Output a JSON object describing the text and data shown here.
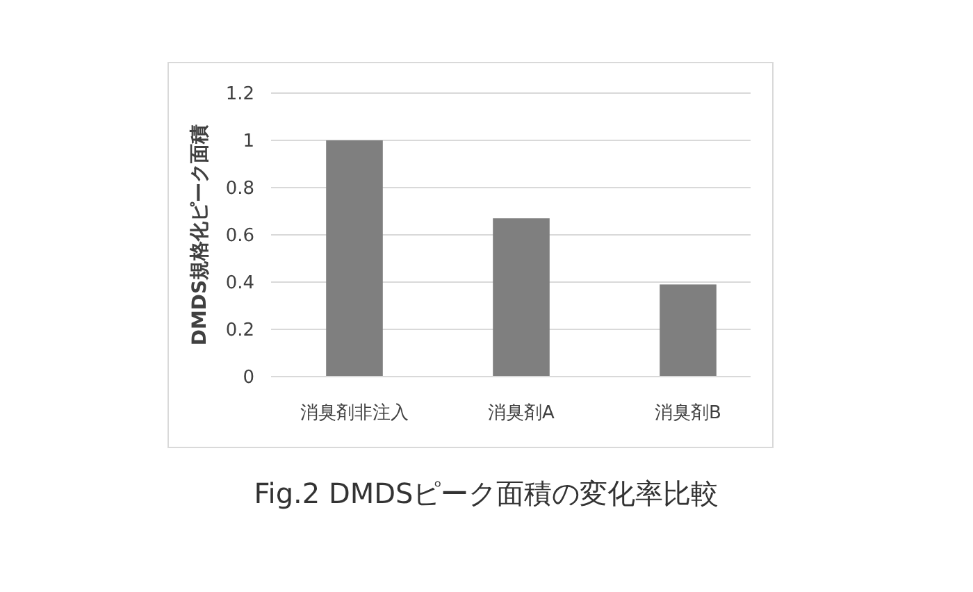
{
  "chart_data": {
    "type": "bar",
    "ylabel": "DMDS規格化ピーク面積",
    "categories": [
      "消臭剤非注入",
      "消臭剤A",
      "消臭剤B"
    ],
    "values": [
      1,
      0.67,
      0.39
    ],
    "color": "#7f7f7f",
    "ylim": [
      0,
      1.2
    ],
    "yticks": [
      0,
      0.2,
      0.4,
      0.6,
      0.8,
      1,
      1.2
    ],
    "grid": "y",
    "annotations": [
      "Fig.2 DMDSピーク面積の変化率比較"
    ]
  }
}
